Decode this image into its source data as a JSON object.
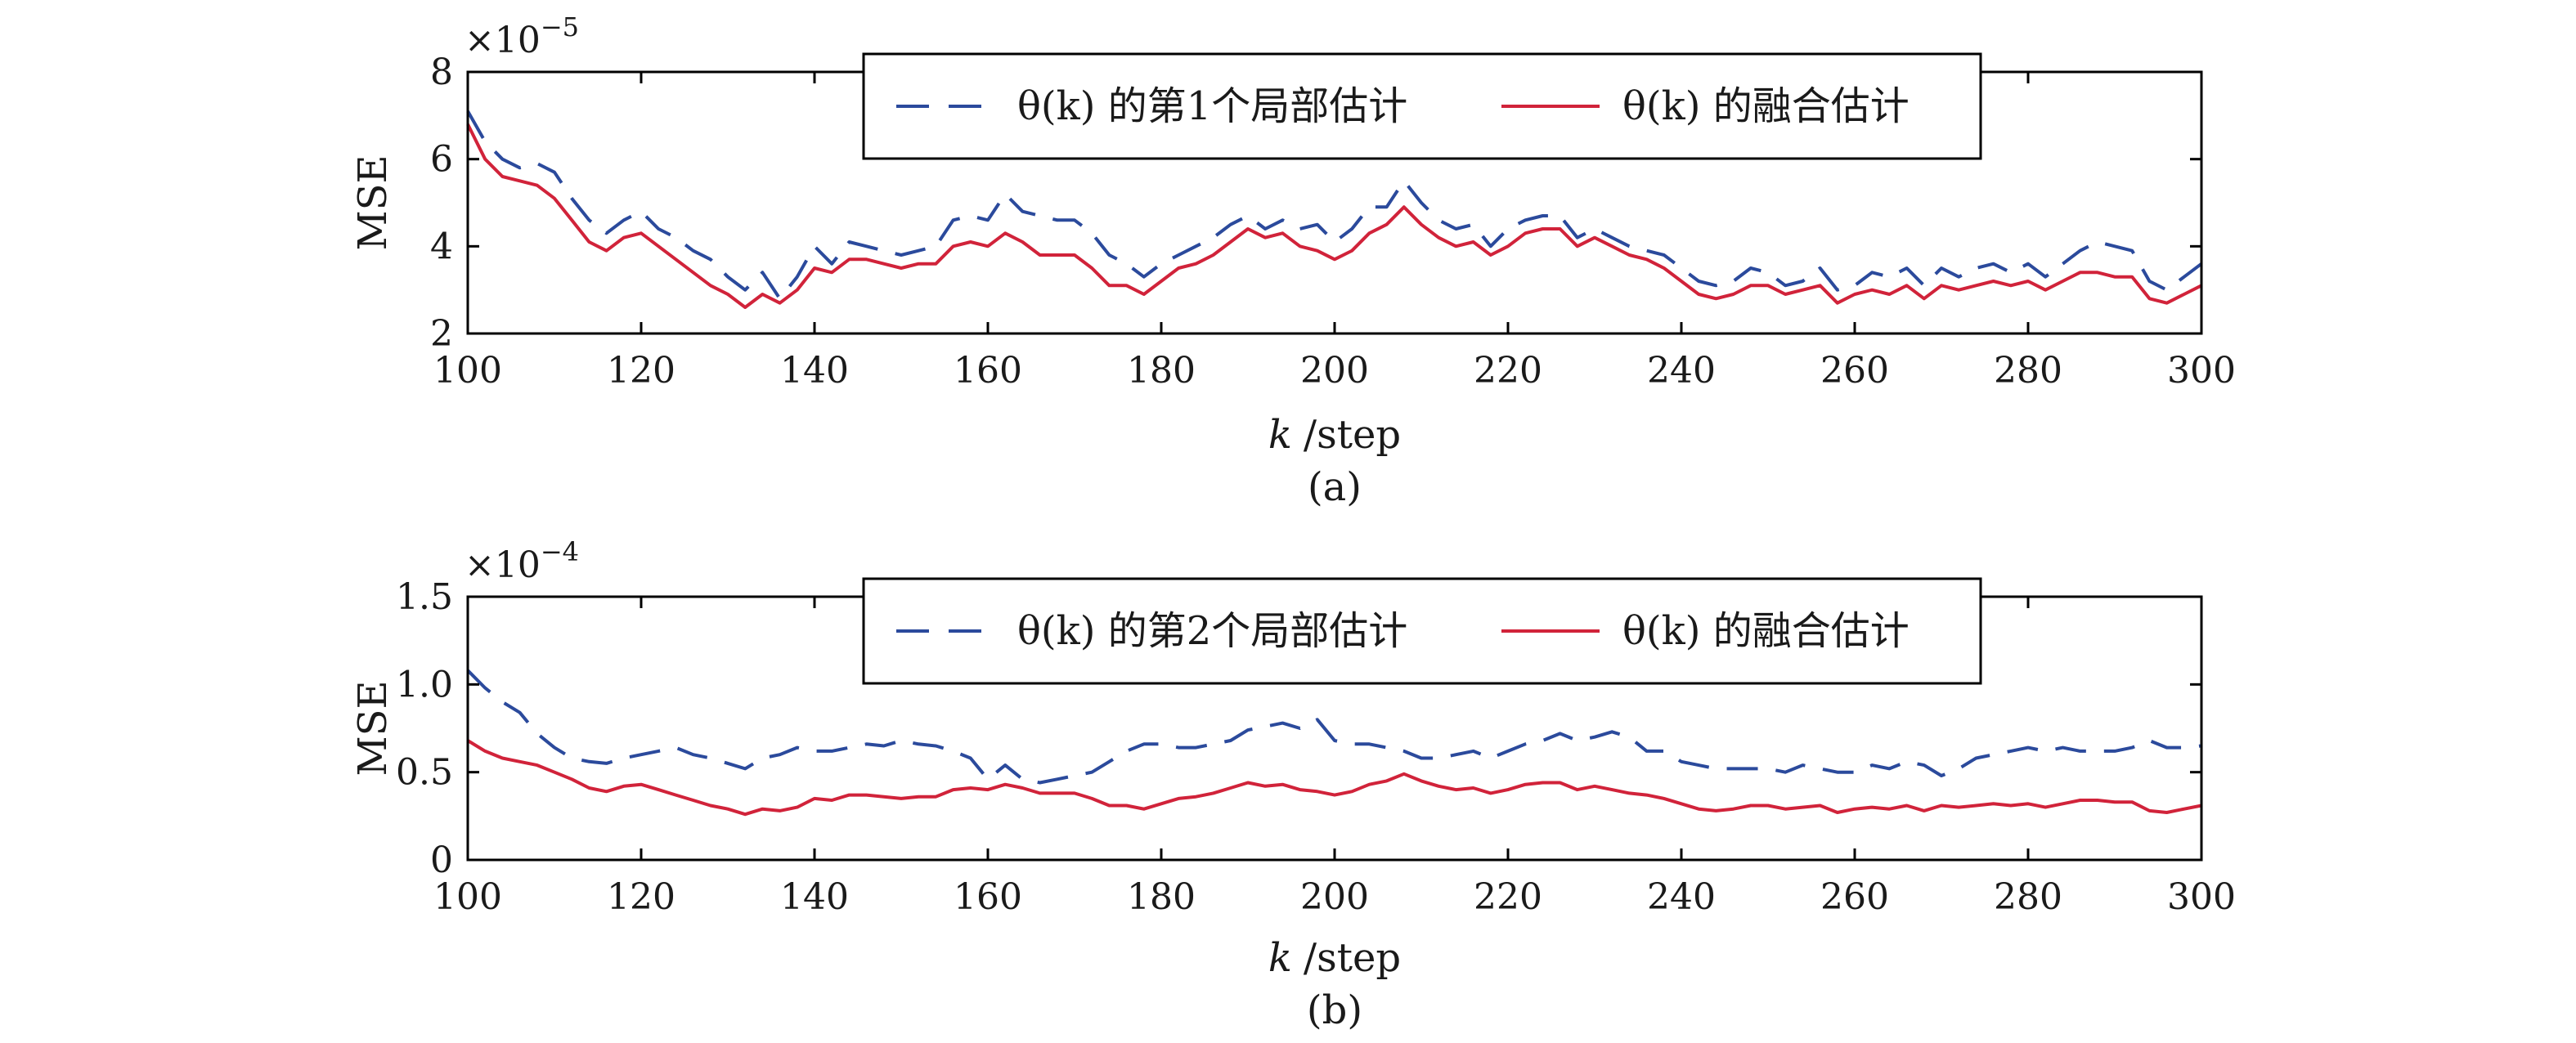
{
  "colors": {
    "local_series": "#2b4a9c",
    "fusion_series": "#d1233a",
    "axis": "#000000",
    "background": "#ffffff"
  },
  "chart_data": [
    {
      "type": "line",
      "panel_label": "(a)",
      "xlabel_var": "k",
      "xlabel_unit": "/step",
      "ylabel": "MSE",
      "y_multiplier": "×10",
      "y_multiplier_exp": "−5",
      "xlim": [
        100,
        300
      ],
      "ylim": [
        2,
        8
      ],
      "x_ticks": [
        100,
        120,
        140,
        160,
        180,
        200,
        220,
        240,
        260,
        280,
        300
      ],
      "y_ticks": [
        2,
        4,
        6,
        8
      ],
      "y_tick_labels": [
        "2",
        "4",
        "6",
        "8"
      ],
      "legend_position": "top-center",
      "series": [
        {
          "name": "θ(k) 的第1个局部估计",
          "style": "dashed",
          "x": [
            100,
            102,
            104,
            106,
            108,
            110,
            112,
            114,
            116,
            118,
            120,
            122,
            124,
            126,
            128,
            130,
            132,
            134,
            136,
            138,
            140,
            142,
            144,
            146,
            148,
            150,
            152,
            154,
            156,
            158,
            160,
            162,
            164,
            166,
            168,
            170,
            172,
            174,
            176,
            178,
            180,
            182,
            184,
            186,
            188,
            190,
            192,
            194,
            196,
            198,
            200,
            202,
            204,
            206,
            208,
            210,
            212,
            214,
            216,
            218,
            220,
            222,
            224,
            226,
            228,
            230,
            232,
            234,
            236,
            238,
            240,
            242,
            244,
            246,
            248,
            250,
            252,
            254,
            256,
            258,
            260,
            262,
            264,
            266,
            268,
            270,
            272,
            274,
            276,
            278,
            280,
            282,
            284,
            286,
            288,
            290,
            292,
            294,
            296,
            298,
            300
          ],
          "values": [
            7.1,
            6.4,
            6.0,
            5.8,
            5.9,
            5.7,
            5.1,
            4.6,
            4.3,
            4.6,
            4.8,
            4.4,
            4.2,
            3.9,
            3.7,
            3.3,
            3.0,
            3.4,
            2.8,
            3.3,
            4.0,
            3.6,
            4.1,
            4.0,
            3.9,
            3.8,
            3.9,
            4.0,
            4.6,
            4.7,
            4.6,
            5.2,
            4.8,
            4.7,
            4.6,
            4.6,
            4.3,
            3.8,
            3.6,
            3.3,
            3.6,
            3.8,
            4.0,
            4.2,
            4.5,
            4.7,
            4.4,
            4.6,
            4.4,
            4.5,
            4.1,
            4.4,
            4.9,
            4.9,
            5.5,
            5.0,
            4.6,
            4.4,
            4.5,
            4.0,
            4.4,
            4.6,
            4.7,
            4.7,
            4.2,
            4.4,
            4.2,
            4.0,
            3.9,
            3.8,
            3.5,
            3.2,
            3.1,
            3.2,
            3.5,
            3.4,
            3.1,
            3.2,
            3.5,
            3.0,
            3.1,
            3.4,
            3.3,
            3.5,
            3.1,
            3.5,
            3.3,
            3.5,
            3.6,
            3.4,
            3.6,
            3.3,
            3.6,
            3.9,
            4.1,
            4.0,
            3.9,
            3.2,
            3.0,
            3.3,
            3.6
          ]
        },
        {
          "name": "θ(k) 的融合估计",
          "style": "solid",
          "x": [
            100,
            102,
            104,
            106,
            108,
            110,
            112,
            114,
            116,
            118,
            120,
            122,
            124,
            126,
            128,
            130,
            132,
            134,
            136,
            138,
            140,
            142,
            144,
            146,
            148,
            150,
            152,
            154,
            156,
            158,
            160,
            162,
            164,
            166,
            168,
            170,
            172,
            174,
            176,
            178,
            180,
            182,
            184,
            186,
            188,
            190,
            192,
            194,
            196,
            198,
            200,
            202,
            204,
            206,
            208,
            210,
            212,
            214,
            216,
            218,
            220,
            222,
            224,
            226,
            228,
            230,
            232,
            234,
            236,
            238,
            240,
            242,
            244,
            246,
            248,
            250,
            252,
            254,
            256,
            258,
            260,
            262,
            264,
            266,
            268,
            270,
            272,
            274,
            276,
            278,
            280,
            282,
            284,
            286,
            288,
            290,
            292,
            294,
            296,
            298,
            300
          ],
          "values": [
            6.8,
            6.0,
            5.6,
            5.5,
            5.4,
            5.1,
            4.6,
            4.1,
            3.9,
            4.2,
            4.3,
            4.0,
            3.7,
            3.4,
            3.1,
            2.9,
            2.6,
            2.9,
            2.7,
            3.0,
            3.5,
            3.4,
            3.7,
            3.7,
            3.6,
            3.5,
            3.6,
            3.6,
            4.0,
            4.1,
            4.0,
            4.3,
            4.1,
            3.8,
            3.8,
            3.8,
            3.5,
            3.1,
            3.1,
            2.9,
            3.2,
            3.5,
            3.6,
            3.8,
            4.1,
            4.4,
            4.2,
            4.3,
            4.0,
            3.9,
            3.7,
            3.9,
            4.3,
            4.5,
            4.9,
            4.5,
            4.2,
            4.0,
            4.1,
            3.8,
            4.0,
            4.3,
            4.4,
            4.4,
            4.0,
            4.2,
            4.0,
            3.8,
            3.7,
            3.5,
            3.2,
            2.9,
            2.8,
            2.9,
            3.1,
            3.1,
            2.9,
            3.0,
            3.1,
            2.7,
            2.9,
            3.0,
            2.9,
            3.1,
            2.8,
            3.1,
            3.0,
            3.1,
            3.2,
            3.1,
            3.2,
            3.0,
            3.2,
            3.4,
            3.4,
            3.3,
            3.3,
            2.8,
            2.7,
            2.9,
            3.1
          ]
        }
      ]
    },
    {
      "type": "line",
      "panel_label": "(b)",
      "xlabel_var": "k",
      "xlabel_unit": "/step",
      "ylabel": "MSE",
      "y_multiplier": "×10",
      "y_multiplier_exp": "−4",
      "xlim": [
        100,
        300
      ],
      "ylim": [
        0,
        1.5
      ],
      "x_ticks": [
        100,
        120,
        140,
        160,
        180,
        200,
        220,
        240,
        260,
        280,
        300
      ],
      "y_ticks": [
        0,
        0.5,
        1.0,
        1.5
      ],
      "y_tick_labels": [
        "0",
        "0.5",
        "1.0",
        "1.5"
      ],
      "legend_position": "top-center",
      "series": [
        {
          "name": "θ(k) 的第2个局部估计",
          "style": "dashed",
          "x": [
            100,
            102,
            104,
            106,
            108,
            110,
            112,
            114,
            116,
            118,
            120,
            122,
            124,
            126,
            128,
            130,
            132,
            134,
            136,
            138,
            140,
            142,
            144,
            146,
            148,
            150,
            152,
            154,
            156,
            158,
            160,
            162,
            164,
            166,
            168,
            170,
            172,
            174,
            176,
            178,
            180,
            182,
            184,
            186,
            188,
            190,
            192,
            194,
            196,
            198,
            200,
            202,
            204,
            206,
            208,
            210,
            212,
            214,
            216,
            218,
            220,
            222,
            224,
            226,
            228,
            230,
            232,
            234,
            236,
            238,
            240,
            242,
            244,
            246,
            248,
            250,
            252,
            254,
            256,
            258,
            260,
            262,
            264,
            266,
            268,
            270,
            272,
            274,
            276,
            278,
            280,
            282,
            284,
            286,
            288,
            290,
            292,
            294,
            296,
            298,
            300
          ],
          "values": [
            1.08,
            0.98,
            0.9,
            0.84,
            0.72,
            0.64,
            0.58,
            0.56,
            0.55,
            0.58,
            0.6,
            0.62,
            0.64,
            0.6,
            0.58,
            0.55,
            0.52,
            0.58,
            0.6,
            0.64,
            0.62,
            0.62,
            0.64,
            0.66,
            0.65,
            0.68,
            0.66,
            0.65,
            0.62,
            0.58,
            0.46,
            0.54,
            0.46,
            0.44,
            0.46,
            0.48,
            0.5,
            0.56,
            0.62,
            0.66,
            0.66,
            0.64,
            0.64,
            0.66,
            0.68,
            0.74,
            0.76,
            0.78,
            0.75,
            0.8,
            0.68,
            0.66,
            0.66,
            0.64,
            0.62,
            0.58,
            0.58,
            0.6,
            0.62,
            0.58,
            0.62,
            0.66,
            0.68,
            0.72,
            0.68,
            0.7,
            0.73,
            0.7,
            0.62,
            0.62,
            0.56,
            0.54,
            0.52,
            0.52,
            0.52,
            0.52,
            0.5,
            0.54,
            0.52,
            0.5,
            0.5,
            0.54,
            0.52,
            0.56,
            0.54,
            0.48,
            0.52,
            0.58,
            0.6,
            0.62,
            0.64,
            0.62,
            0.64,
            0.62,
            0.62,
            0.62,
            0.64,
            0.68,
            0.64,
            0.64,
            0.65
          ]
        },
        {
          "name": "θ(k) 的融合估计",
          "style": "solid",
          "x": [
            100,
            102,
            104,
            106,
            108,
            110,
            112,
            114,
            116,
            118,
            120,
            122,
            124,
            126,
            128,
            130,
            132,
            134,
            136,
            138,
            140,
            142,
            144,
            146,
            148,
            150,
            152,
            154,
            156,
            158,
            160,
            162,
            164,
            166,
            168,
            170,
            172,
            174,
            176,
            178,
            180,
            182,
            184,
            186,
            188,
            190,
            192,
            194,
            196,
            198,
            200,
            202,
            204,
            206,
            208,
            210,
            212,
            214,
            216,
            218,
            220,
            222,
            224,
            226,
            228,
            230,
            232,
            234,
            236,
            238,
            240,
            242,
            244,
            246,
            248,
            250,
            252,
            254,
            256,
            258,
            260,
            262,
            264,
            266,
            268,
            270,
            272,
            274,
            276,
            278,
            280,
            282,
            284,
            286,
            288,
            290,
            292,
            294,
            296,
            298,
            300
          ],
          "values": [
            0.68,
            0.62,
            0.58,
            0.56,
            0.54,
            0.5,
            0.46,
            0.41,
            0.39,
            0.42,
            0.43,
            0.4,
            0.37,
            0.34,
            0.31,
            0.29,
            0.26,
            0.29,
            0.28,
            0.3,
            0.35,
            0.34,
            0.37,
            0.37,
            0.36,
            0.35,
            0.36,
            0.36,
            0.4,
            0.41,
            0.4,
            0.43,
            0.41,
            0.38,
            0.38,
            0.38,
            0.35,
            0.31,
            0.31,
            0.29,
            0.32,
            0.35,
            0.36,
            0.38,
            0.41,
            0.44,
            0.42,
            0.43,
            0.4,
            0.39,
            0.37,
            0.39,
            0.43,
            0.45,
            0.49,
            0.45,
            0.42,
            0.4,
            0.41,
            0.38,
            0.4,
            0.43,
            0.44,
            0.44,
            0.4,
            0.42,
            0.4,
            0.38,
            0.37,
            0.35,
            0.32,
            0.29,
            0.28,
            0.29,
            0.31,
            0.31,
            0.29,
            0.3,
            0.31,
            0.27,
            0.29,
            0.3,
            0.29,
            0.31,
            0.28,
            0.31,
            0.3,
            0.31,
            0.32,
            0.31,
            0.32,
            0.3,
            0.32,
            0.34,
            0.34,
            0.33,
            0.33,
            0.28,
            0.27,
            0.29,
            0.31
          ]
        }
      ]
    }
  ]
}
